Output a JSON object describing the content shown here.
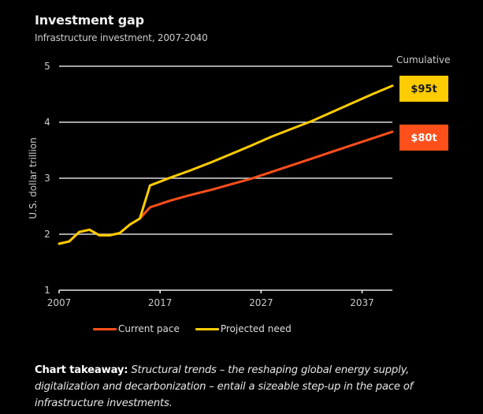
{
  "header": {
    "title": "Investment gap",
    "subtitle": "Infrastructure investment, 2007-2040"
  },
  "chart_data": {
    "type": "line",
    "title": "Investment gap",
    "subtitle": "Infrastructure investment, 2007-2040",
    "xlabel": "",
    "ylabel": "U.S. dollar trillion",
    "xlim": [
      2007,
      2040
    ],
    "ylim": [
      1,
      5
    ],
    "xticks": [
      2007,
      2017,
      2027,
      2037
    ],
    "yticks": [
      1,
      2,
      3,
      4,
      5
    ],
    "grid": true,
    "legend_position": "bottom",
    "annotation_header": "Cumulative",
    "series": [
      {
        "name": "Current pace",
        "color": "#ff4f1a",
        "cumulative_label": "$80t",
        "label_text_color": "#ffffff",
        "x": [
          2007,
          2008,
          2009,
          2010,
          2011,
          2012,
          2013,
          2014,
          2015,
          2016,
          2017,
          2018,
          2020,
          2022,
          2024,
          2026,
          2028,
          2030,
          2032,
          2034,
          2036,
          2038,
          2040
        ],
        "y": [
          1.83,
          1.87,
          2.04,
          2.08,
          1.98,
          1.98,
          2.02,
          2.17,
          2.28,
          2.48,
          2.54,
          2.6,
          2.7,
          2.79,
          2.89,
          2.99,
          3.11,
          3.23,
          3.35,
          3.47,
          3.59,
          3.71,
          3.83
        ]
      },
      {
        "name": "Projected need",
        "color": "#ffcc00",
        "cumulative_label": "$95t",
        "label_text_color": "#1a1a1a",
        "x": [
          2007,
          2008,
          2009,
          2010,
          2011,
          2012,
          2013,
          2014,
          2015,
          2016,
          2017,
          2018,
          2020,
          2022,
          2024,
          2026,
          2028,
          2030,
          2032,
          2034,
          2036,
          2038,
          2040
        ],
        "y": [
          1.83,
          1.87,
          2.04,
          2.08,
          1.98,
          1.98,
          2.02,
          2.17,
          2.28,
          2.87,
          2.94,
          3.01,
          3.14,
          3.28,
          3.43,
          3.58,
          3.74,
          3.88,
          4.02,
          4.18,
          4.34,
          4.5,
          4.65
        ]
      }
    ]
  },
  "takeaway": {
    "label": "Chart takeaway:",
    "text": " Structural trends – the reshaping global energy supply, digitalization and decarbonization – entail a sizeable step-up in the pace of infrastructure investments."
  }
}
